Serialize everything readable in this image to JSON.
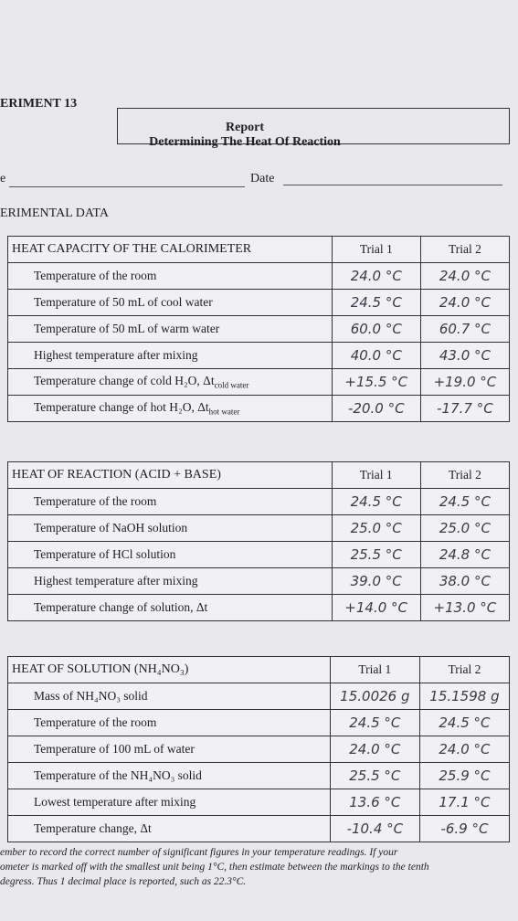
{
  "header": {
    "experiment": "ERIMENT 13",
    "report": "Report",
    "title": "Determining The Heat Of Reaction",
    "name_label": "e",
    "date_label": "Date",
    "section": "ERIMENTAL DATA"
  },
  "tables": [
    {
      "title": "HEAT CAPACITY OF THE CALORIMETER",
      "columns": [
        "Trial 1",
        "Trial 2"
      ],
      "rows": [
        {
          "label": "Temperature of the room",
          "trial1": "24.0 °C",
          "trial2": "24.0 °C"
        },
        {
          "label": "Temperature of 50 mL of cool water",
          "trial1": "24.5 °C",
          "trial2": "24.0 °C"
        },
        {
          "label": "Temperature of 50 mL of warm water",
          "trial1": "60.0 °C",
          "trial2": "60.7 °C"
        },
        {
          "label": "Highest temperature after mixing",
          "trial1": "40.0 °C",
          "trial2": "43.0 °C"
        },
        {
          "label": "Temperature change of cold H₂O, Δt",
          "sub": "cold water",
          "trial1": "+15.5 °C",
          "trial2": "+19.0 °C"
        },
        {
          "label": "Temperature change of hot H₂O, Δt",
          "sub": "hot water",
          "trial1": "-20.0 °C",
          "trial2": "-17.7 °C"
        }
      ]
    },
    {
      "title": "HEAT OF REACTION (ACID + BASE)",
      "columns": [
        "Trial 1",
        "Trial 2"
      ],
      "rows": [
        {
          "label": "Temperature of the room",
          "trial1": "24.5 °C",
          "trial2": "24.5 °C"
        },
        {
          "label": "Temperature of NaOH solution",
          "trial1": "25.0 °C",
          "trial2": "25.0 °C"
        },
        {
          "label": "Temperature of HCl solution",
          "trial1": "25.5 °C",
          "trial2": "24.8 °C"
        },
        {
          "label": "Highest temperature after mixing",
          "trial1": "39.0 °C",
          "trial2": "38.0 °C"
        },
        {
          "label": "Temperature change of solution, Δt",
          "trial1": "+14.0 °C",
          "trial2": "+13.0 °C"
        }
      ]
    },
    {
      "title": "HEAT OF SOLUTION (NH₄NO₃)",
      "columns": [
        "Trial 1",
        "Trial 2"
      ],
      "rows": [
        {
          "label": "Mass of NH₄NO₃ solid",
          "trial1": "15.0026 g",
          "trial2": "15.1598 g"
        },
        {
          "label": "Temperature of the room",
          "trial1": "24.5 °C",
          "trial2": "24.5 °C"
        },
        {
          "label": "Temperature of 100 mL of water",
          "trial1": "24.0 °C",
          "trial2": "24.0 °C"
        },
        {
          "label": "Temperature of the NH₄NO₃ solid",
          "trial1": "25.5 °C",
          "trial2": "25.9 °C"
        },
        {
          "label": "Lowest temperature after mixing",
          "trial1": "13.6 °C",
          "trial2": "17.1 °C"
        },
        {
          "label": "Temperature change, Δt",
          "trial1": "-10.4 °C",
          "trial2": "-6.9 °C"
        }
      ]
    }
  ],
  "footer": [
    "ember to record the correct number of significant figures in your temperature readings. If your",
    "ometer is marked off with the smallest unit being 1°C, then estimate between the markings to the tenth",
    "degress. Thus 1 decimal place is reported, such as 22.3°C."
  ]
}
